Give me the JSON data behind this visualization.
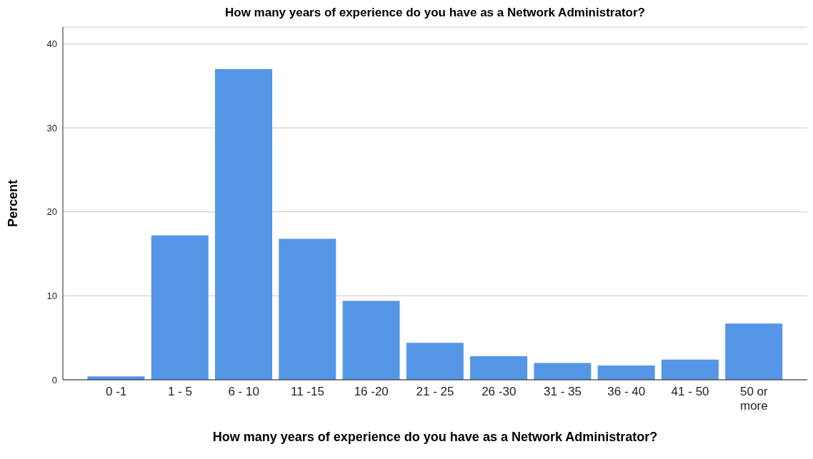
{
  "chart_data": {
    "type": "bar",
    "title": "How many years of experience do you have as a Network Administrator?",
    "xlabel": "How many years of experience do you have as a Network Administrator?",
    "ylabel": "Percent",
    "categories": [
      "0 -1",
      "1 - 5",
      "6 - 10",
      "11 -15",
      "16 -20",
      "21 - 25",
      "26 -30",
      "31 - 35",
      "36 - 40",
      "41 - 50",
      "50 or more"
    ],
    "values": [
      0.4,
      17.2,
      37.0,
      16.8,
      9.4,
      4.4,
      2.8,
      2.0,
      1.7,
      2.4,
      6.7
    ],
    "color": "#5596e6",
    "ylim": [
      0,
      42
    ],
    "yticks": [
      0,
      10,
      20,
      30,
      40
    ],
    "grid": "y"
  }
}
